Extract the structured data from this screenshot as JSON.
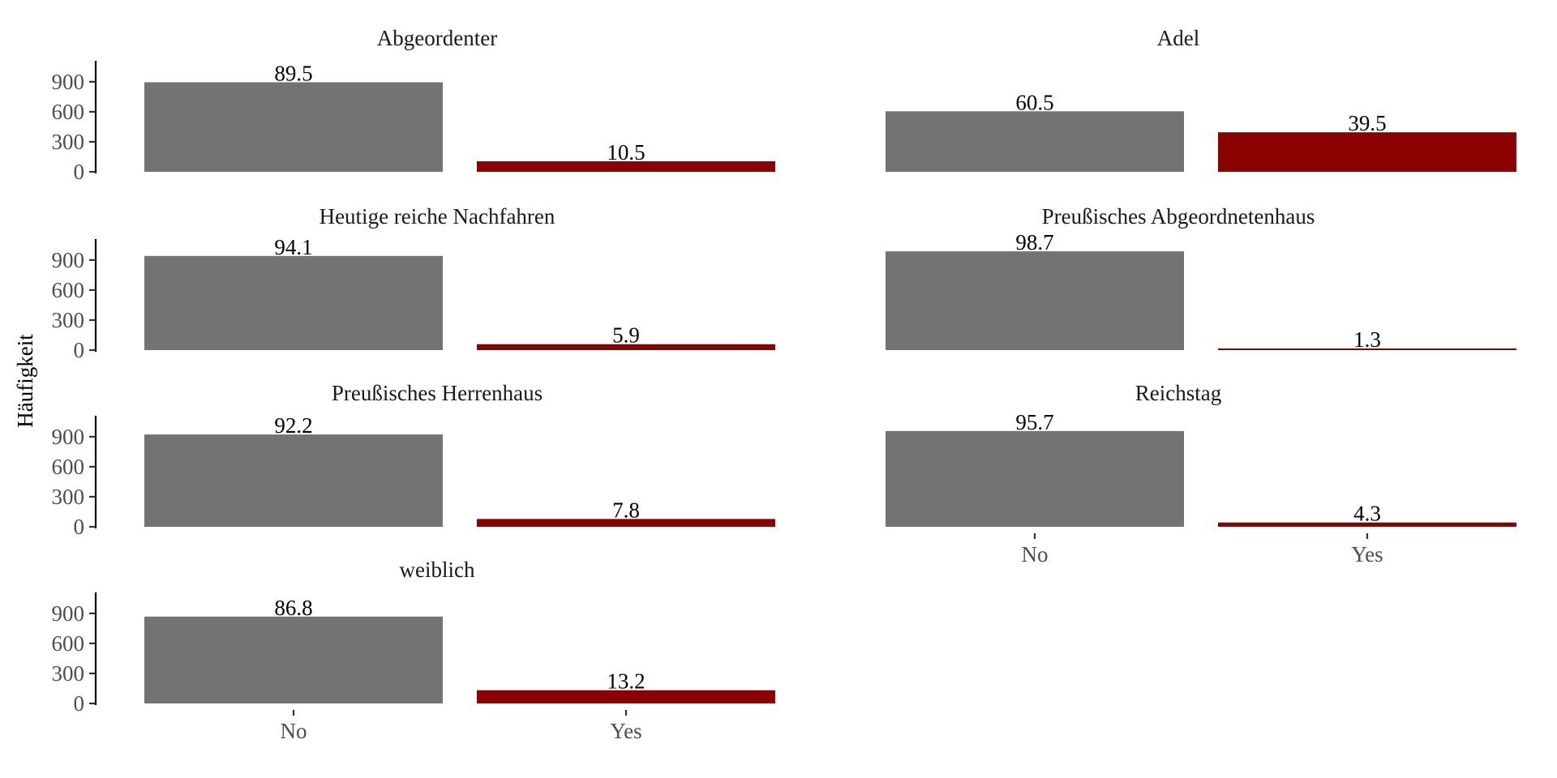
{
  "chart_data": {
    "type": "bar",
    "ylabel": "Häufigkeit",
    "categories": [
      "No",
      "Yes"
    ],
    "yticks": [
      0,
      300,
      600,
      900
    ],
    "ylim": [
      0,
      1150
    ],
    "colors": {
      "No": "#737373",
      "Yes": "#8b0000"
    },
    "panels": [
      {
        "title": "Abgeordenter",
        "values": [
          895,
          105
        ],
        "labels": [
          "89.5",
          "10.5"
        ]
      },
      {
        "title": "Adel",
        "values": [
          605,
          395
        ],
        "labels": [
          "60.5",
          "39.5"
        ]
      },
      {
        "title": "Heutige reiche Nachfahren",
        "values": [
          941,
          59
        ],
        "labels": [
          "94.1",
          "5.9"
        ]
      },
      {
        "title": "Preußisches Abgeordnetenhaus",
        "values": [
          987,
          13
        ],
        "labels": [
          "98.7",
          "1.3"
        ]
      },
      {
        "title": "Preußisches Herrenhaus",
        "values": [
          922,
          78
        ],
        "labels": [
          "92.2",
          "7.8"
        ]
      },
      {
        "title": "Reichstag",
        "values": [
          957,
          43
        ],
        "labels": [
          "95.7",
          "4.3"
        ]
      },
      {
        "title": "weiblich",
        "values": [
          868,
          132
        ],
        "labels": [
          "86.8",
          "13.2"
        ]
      }
    ]
  }
}
